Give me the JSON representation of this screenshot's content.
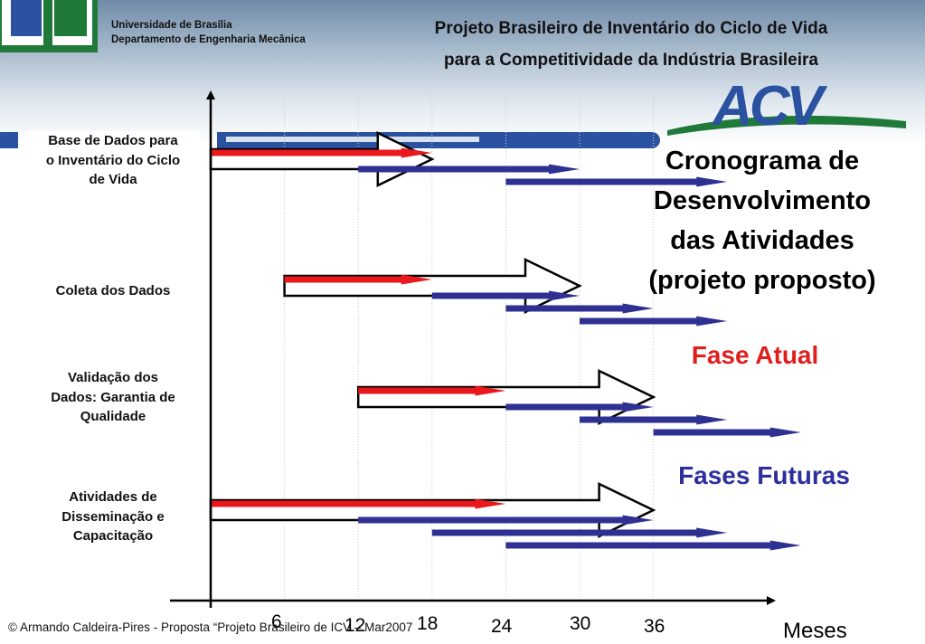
{
  "header": {
    "university": "Universidade de Brasília",
    "department": "Departamento de Engenharia Mecânica",
    "title_line1": "Projeto Brasileiro de Inventário do Ciclo de Vida",
    "title_line2": "para a Competitividade da Indústria Brasileira",
    "logo_text": "ACV"
  },
  "side": {
    "title_line1": "Cronograma de",
    "title_line2": "Desenvolvimento",
    "title_line3": "das Atividades",
    "title_line4": "(projeto proposto)",
    "phase_current": "Fase Atual",
    "phase_future": "Fases Futuras"
  },
  "colors": {
    "current_phase": "#e8181c",
    "future_phase": "#2e3192",
    "brand_green": "#1f7a3a",
    "brand_blue": "#2a52a0"
  },
  "rows": [
    {
      "line1": "Base de Dados para",
      "line2": "o Inventário do Ciclo",
      "line3": "de Vida"
    },
    {
      "line1": "Coleta dos Dados"
    },
    {
      "line1": "Validação dos",
      "line2": "Dados: Garantia de",
      "line3": "Qualidade"
    },
    {
      "line1": "Atividades de",
      "line2": "Disseminação e",
      "line3": "Capacitação"
    }
  ],
  "axis": {
    "label": "Meses",
    "ticks": [
      "6",
      "12",
      "18",
      "24",
      "30",
      "36"
    ]
  },
  "schedule": [
    {
      "row": 0,
      "outline": [
        0,
        18
      ],
      "current": [
        [
          0,
          18
        ]
      ],
      "future": [
        [
          12,
          30
        ],
        [
          24,
          42
        ]
      ]
    },
    {
      "row": 1,
      "outline": [
        6,
        30
      ],
      "current": [
        [
          6,
          18
        ]
      ],
      "future": [
        [
          18,
          30
        ],
        [
          24,
          36
        ],
        [
          30,
          42
        ]
      ]
    },
    {
      "row": 2,
      "outline": [
        12,
        36
      ],
      "current": [
        [
          12,
          24
        ]
      ],
      "future": [
        [
          24,
          36
        ],
        [
          30,
          42
        ],
        [
          36,
          48
        ]
      ]
    },
    {
      "row": 3,
      "outline": [
        0,
        36
      ],
      "current": [
        [
          0,
          24
        ]
      ],
      "future": [
        [
          12,
          36
        ],
        [
          18,
          42
        ],
        [
          24,
          48
        ]
      ]
    }
  ],
  "footer": {
    "credit": "© Armando Caldeira-Pires - Proposta “Projeto Brasileiro de ICV – Mar2007"
  }
}
